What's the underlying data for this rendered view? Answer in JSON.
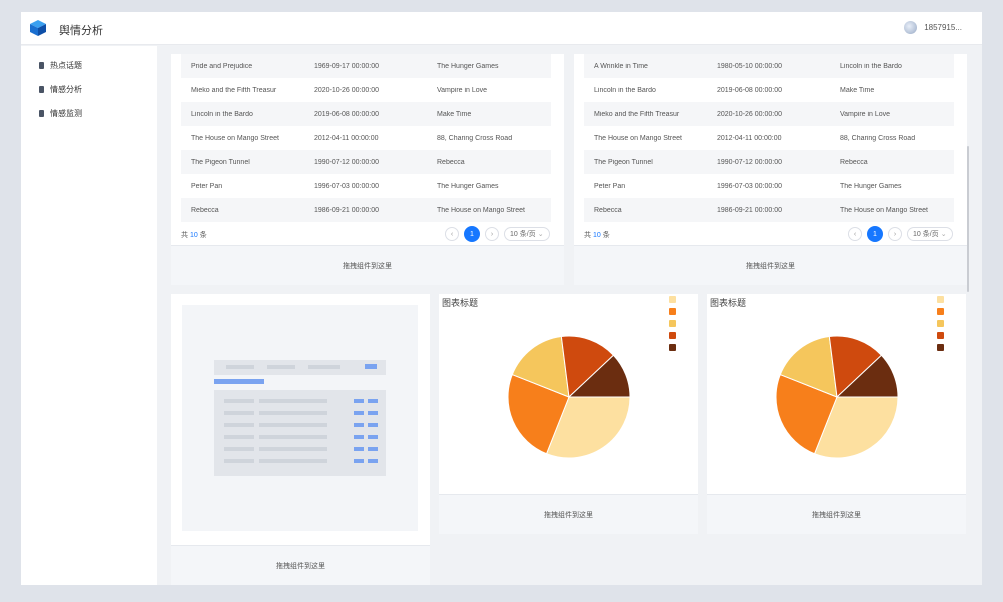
{
  "header": {
    "title": "舆情分析",
    "user": "1857915..."
  },
  "sidebar": {
    "items": [
      {
        "label": "热点话题"
      },
      {
        "label": "情感分析"
      },
      {
        "label": "情感监测"
      }
    ]
  },
  "drop_hint": "拖拽组件到这里",
  "tables": [
    {
      "rows": [
        [
          "Pride and Prejudice",
          "1969-09-17 00:00:00",
          "The Hunger Games"
        ],
        [
          "Mieko and the Fifth Treasur",
          "2020-10-26 00:00:00",
          "Vampire in Love"
        ],
        [
          "Lincoln in the Bardo",
          "2019-06-08 00:00:00",
          "Make Time"
        ],
        [
          "The House on Mango Street",
          "2012-04-11 00:00:00",
          "88, Charing Cross Road"
        ],
        [
          "The Pigeon Tunnel",
          "1990-07-12 00:00:00",
          "Rebecca"
        ],
        [
          "Peter Pan",
          "1996-07-03 00:00:00",
          "The Hunger Games"
        ],
        [
          "Rebecca",
          "1986-09-21 00:00:00",
          "The House on Mango Street"
        ]
      ],
      "total_prefix": "共",
      "total_count": "10",
      "total_suffix": "条",
      "current_page": "1",
      "page_size": "10 条/页"
    },
    {
      "rows": [
        [
          "A Wrinkle in Time",
          "1980-05-10 00:00:00",
          "Lincoln in the Bardo"
        ],
        [
          "Lincoln in the Bardo",
          "2019-06-08 00:00:00",
          "Make Time"
        ],
        [
          "Mieko and the Fifth Treasur",
          "2020-10-26 00:00:00",
          "Vampire in Love"
        ],
        [
          "The House on Mango Street",
          "2012-04-11 00:00:00",
          "88, Charing Cross Road"
        ],
        [
          "The Pigeon Tunnel",
          "1990-07-12 00:00:00",
          "Rebecca"
        ],
        [
          "Peter Pan",
          "1996-07-03 00:00:00",
          "The Hunger Games"
        ],
        [
          "Rebecca",
          "1986-09-21 00:00:00",
          "The House on Mango Street"
        ]
      ],
      "total_prefix": "共",
      "total_count": "10",
      "total_suffix": "条",
      "current_page": "1",
      "page_size": "10 条/页"
    }
  ],
  "icons": {
    "prev": "chevron-left-icon",
    "next": "chevron-right-icon",
    "select": "chevron-down-icon"
  },
  "colors": {
    "primary": "#1677ff",
    "pie": [
      "#fde0a0",
      "#f77f1b",
      "#f5c65c",
      "#cf4a0e",
      "#6b2d10"
    ]
  },
  "chart_data": [
    {
      "type": "pie",
      "title": "图表标题",
      "values": [
        31,
        25,
        17,
        15,
        12
      ],
      "colors": [
        "#fde0a0",
        "#f77f1b",
        "#f5c65c",
        "#cf4a0e",
        "#6b2d10"
      ]
    },
    {
      "type": "pie",
      "title": "图表标题",
      "values": [
        31,
        25,
        17,
        15,
        12
      ],
      "colors": [
        "#fde0a0",
        "#f77f1b",
        "#f5c65c",
        "#cf4a0e",
        "#6b2d10"
      ]
    }
  ]
}
